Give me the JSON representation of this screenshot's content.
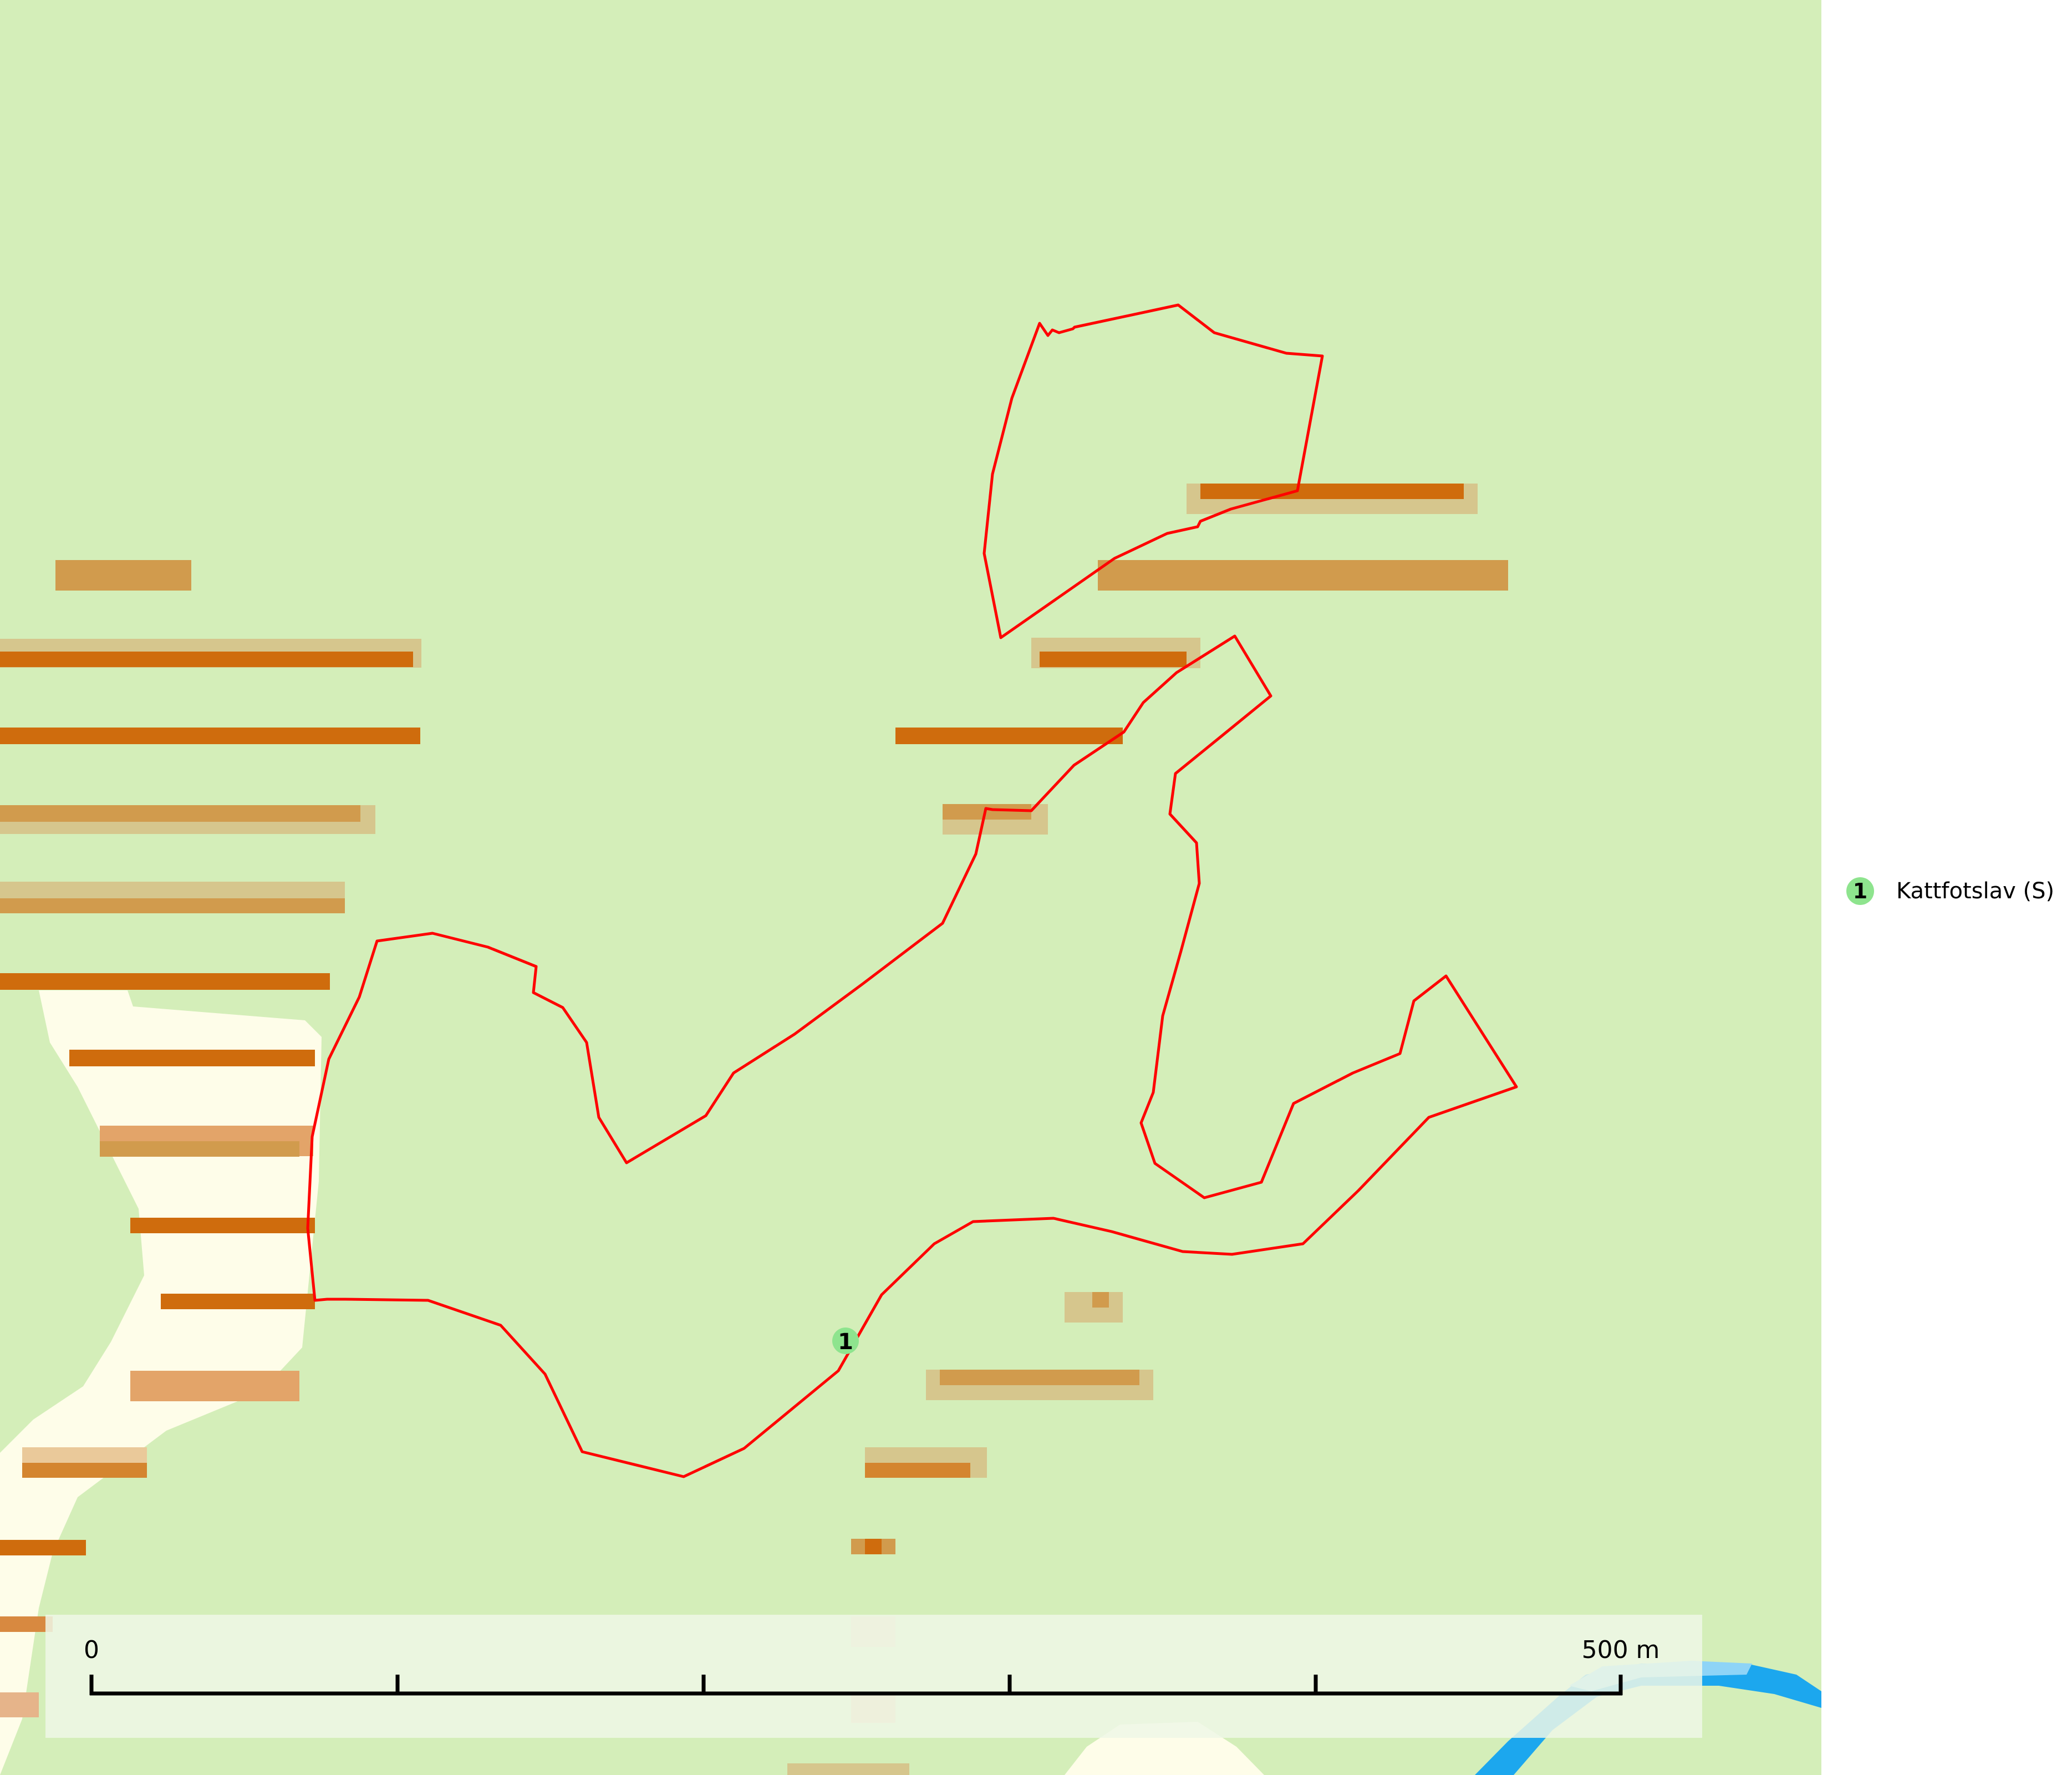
{
  "colors": {
    "background": "#d4eeb9",
    "outside": "#ffffff",
    "band_dark": "#cf6c0d",
    "band_medium": "#d19b4d",
    "band_light": "#d6c68d",
    "open_area": "#fefde9",
    "water": "#1ca7ee",
    "water_light": "#8ed4f7",
    "boundary": "#ff0000",
    "marker_fill": "#8ee48e",
    "scalebar_bg": "#eef7e6"
  },
  "scale_bar": {
    "label_start": "0",
    "label_end": "500 m",
    "segments": 5
  },
  "observation": {
    "number": "1",
    "icon": "green-circle-icon"
  },
  "legend": {
    "items": [
      {
        "number": "1",
        "label": "Kattfotslav (S)"
      }
    ]
  }
}
